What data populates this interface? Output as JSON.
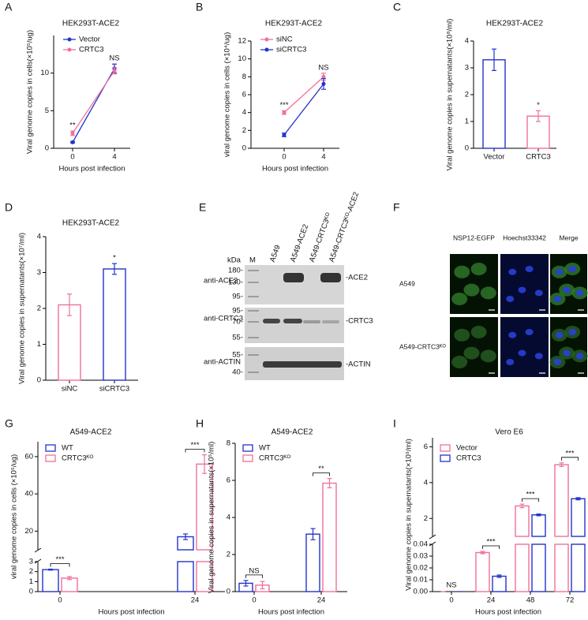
{
  "panel_labels": [
    "A",
    "B",
    "C",
    "D",
    "E",
    "F",
    "G",
    "H",
    "I"
  ],
  "chart_data": [
    {
      "type": "line",
      "title": "HEK293T-ACE2",
      "xlabel": "Hours post infection",
      "ylabel": "Viral genome copies in cells(×10⁵/ug)",
      "categories": [
        "0",
        "4"
      ],
      "series": [
        {
          "name": "Vector",
          "color": "#2233cc",
          "values": [
            0.8,
            10.6
          ],
          "errors": [
            0.1,
            0.6
          ]
        },
        {
          "name": "CRTC3",
          "color": "#f0709a",
          "values": [
            2.0,
            10.3
          ],
          "errors": [
            0.3,
            0.4
          ]
        }
      ],
      "ylim": [
        0,
        15
      ],
      "yticks": [
        0,
        5,
        10
      ],
      "annotations": [
        {
          "x": "0",
          "text": "**"
        },
        {
          "x": "4",
          "text": "NS"
        }
      ]
    },
    {
      "type": "line",
      "title": "HEK293T-ACE2",
      "xlabel": "Hours post infection",
      "ylabel": "viral genome copies in cells (×10⁴/ug)",
      "categories": [
        "0",
        "4"
      ],
      "series": [
        {
          "name": "siNC",
          "color": "#f0709a",
          "values": [
            4.0,
            8.0
          ],
          "errors": [
            0.2,
            0.4
          ]
        },
        {
          "name": "siCRTC3",
          "color": "#2233cc",
          "values": [
            1.5,
            7.2
          ],
          "errors": [
            0.2,
            0.6
          ]
        }
      ],
      "ylim": [
        0,
        12
      ],
      "yticks": [
        0,
        2,
        4,
        6,
        8,
        10,
        12
      ],
      "annotations": [
        {
          "x": "0",
          "text": "***"
        },
        {
          "x": "4",
          "text": "NS"
        }
      ]
    },
    {
      "type": "bar",
      "title": "HEK293T-ACE2",
      "ylabel": "Viral genome copies in supernatants(×10⁸/ml)",
      "categories": [
        "Vector",
        "CRTC3"
      ],
      "values": [
        3.3,
        1.2
      ],
      "errors": [
        0.4,
        0.2
      ],
      "colors": [
        "#2233cc",
        "#f0709a"
      ],
      "ylim": [
        0,
        4
      ],
      "yticks": [
        0,
        1,
        2,
        3,
        4
      ],
      "annotations": [
        {
          "x": "CRTC3",
          "text": "*"
        }
      ]
    },
    {
      "type": "bar",
      "title": "HEK293T-ACE2",
      "ylabel": "Viral genome copies in supernatants(×10⁷/ml)",
      "categories": [
        "siNC",
        "siCRTC3"
      ],
      "values": [
        2.1,
        3.1
      ],
      "errors": [
        0.3,
        0.15
      ],
      "colors": [
        "#f0709a",
        "#2233cc"
      ],
      "ylim": [
        0,
        4
      ],
      "yticks": [
        0,
        1,
        2,
        3,
        4
      ],
      "annotations": [
        {
          "x": "siCRTC3",
          "text": "*"
        }
      ]
    },
    {
      "type": "grouped_bar",
      "title": "A549-ACE2",
      "xlabel": "Hours post infection",
      "ylabel": "viral genome copies in cells (×10⁵/ug)",
      "categories": [
        "0",
        "24"
      ],
      "series": [
        {
          "name": "WT",
          "color": "#2233cc",
          "values": [
            2.2,
            17
          ],
          "errors": [
            0.05,
            1.5
          ]
        },
        {
          "name": "CRTC3ᴷᴼ",
          "color": "#f0709a",
          "values": [
            1.35,
            56
          ],
          "errors": [
            0.15,
            5
          ]
        }
      ],
      "segments": [
        {
          "ylim": [
            0,
            3
          ],
          "yticks": [
            0,
            1,
            2,
            3
          ]
        },
        {
          "ylim": [
            10,
            68
          ],
          "yticks": [
            20,
            40,
            60
          ]
        }
      ],
      "annotations": [
        {
          "x": "0",
          "text": "***"
        },
        {
          "x": "24",
          "text": "***"
        }
      ]
    },
    {
      "type": "grouped_bar",
      "title": "A549-ACE2",
      "xlabel": "Hours post infection",
      "ylabel": "Viral genome copies in supernatants(×10⁵/ml)",
      "categories": [
        "0",
        "24"
      ],
      "series": [
        {
          "name": "WT",
          "color": "#2233cc",
          "values": [
            0.45,
            3.1
          ],
          "errors": [
            0.15,
            0.3
          ]
        },
        {
          "name": "CRTC3ᴷᴼ",
          "color": "#f0709a",
          "values": [
            0.35,
            5.85
          ],
          "errors": [
            0.2,
            0.25
          ]
        }
      ],
      "ylim": [
        0,
        8
      ],
      "yticks": [
        0,
        2,
        4,
        6,
        8
      ],
      "annotations": [
        {
          "x": "0",
          "text": "NS"
        },
        {
          "x": "24",
          "text": "**"
        }
      ]
    },
    {
      "type": "grouped_bar",
      "title": "Vero E6",
      "xlabel": "Hours post infection",
      "ylabel": "Viral genome copies in supernatants(×10⁹/ml)",
      "categories": [
        "0",
        "24",
        "48",
        "72"
      ],
      "series": [
        {
          "name": "Vector",
          "color": "#f0709a",
          "values": [
            0,
            0.033,
            2.7,
            5.0
          ],
          "errors": [
            0,
            0.001,
            0.1,
            0.1
          ]
        },
        {
          "name": "CRTC3",
          "color": "#2233cc",
          "values": [
            0,
            0.013,
            2.2,
            3.1
          ],
          "errors": [
            0,
            0.001,
            0.05,
            0.06
          ]
        }
      ],
      "segments": [
        {
          "ylim": [
            0,
            0.04
          ],
          "yticks": [
            {
              "value": 0,
              "label": "0.00"
            },
            0.01,
            0.02,
            0.03,
            0.04
          ]
        },
        {
          "ylim": [
            1,
            6.5
          ],
          "yticks": [
            2,
            4,
            6
          ]
        }
      ],
      "annotations": [
        {
          "x": "0",
          "text": "NS"
        },
        {
          "x": "24",
          "text": "***"
        },
        {
          "x": "48",
          "text": "***"
        },
        {
          "x": "72",
          "text": "***"
        }
      ]
    }
  ],
  "blot": {
    "units": "kDa",
    "marker_lane": "M",
    "lanes": [
      "A549",
      "A549-ACE2",
      "A549-CRTC3ᴷᴼ",
      "A549-CRTC3ᴷᴼ-ACE2"
    ],
    "rows": [
      {
        "antibody": "anti-ACE2",
        "markers": [
          "180-",
          "130-",
          "95-"
        ],
        "band": "-ACE2"
      },
      {
        "antibody": "anti-CRTC3",
        "markers": [
          "95-",
          "70-",
          "55-"
        ],
        "band": "-CRTC3"
      },
      {
        "antibody": "anti-ACTIN",
        "markers": [
          "55-",
          "40-"
        ],
        "band": "-ACTIN"
      }
    ]
  },
  "microscopy": {
    "channels": [
      "NSP12-EGFP",
      "Hoechst33342",
      "Merge"
    ],
    "rows": [
      "A549",
      "A549-CRTC3ᴷᴼ"
    ]
  }
}
